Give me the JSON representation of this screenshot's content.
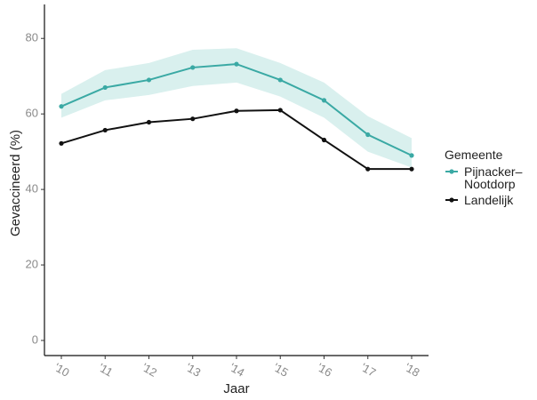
{
  "chart_data": {
    "type": "line",
    "categories": [
      "'10",
      "'11",
      "'12",
      "'13",
      "'14",
      "'15",
      "'16",
      "'17",
      "'18"
    ],
    "series": [
      {
        "name": "Pijnacker–Nootdorp",
        "color": "#3aa9a4",
        "values": [
          62,
          67,
          69,
          72.3,
          73.2,
          69,
          63.6,
          54.5,
          49
        ],
        "lower": [
          59,
          63.6,
          65,
          67.4,
          68.3,
          64.6,
          59,
          50,
          45.8
        ],
        "upper": [
          65.3,
          71.6,
          73.5,
          77,
          77.4,
          73.5,
          68.3,
          59.4,
          53.6
        ],
        "band_color": "#d9f0ee"
      },
      {
        "name": "Landelijk",
        "color": "#111111",
        "values": [
          52.2,
          55.7,
          57.8,
          58.7,
          60.8,
          61,
          53.1,
          45.4,
          45.4
        ]
      }
    ],
    "ylim": [
      -4,
      89
    ],
    "yticks": [
      0,
      20,
      40,
      60,
      80
    ],
    "xlabel": "Jaar",
    "ylabel": "Gevaccineerd (%)",
    "legend_title": "Gemeente",
    "legend": "right"
  }
}
